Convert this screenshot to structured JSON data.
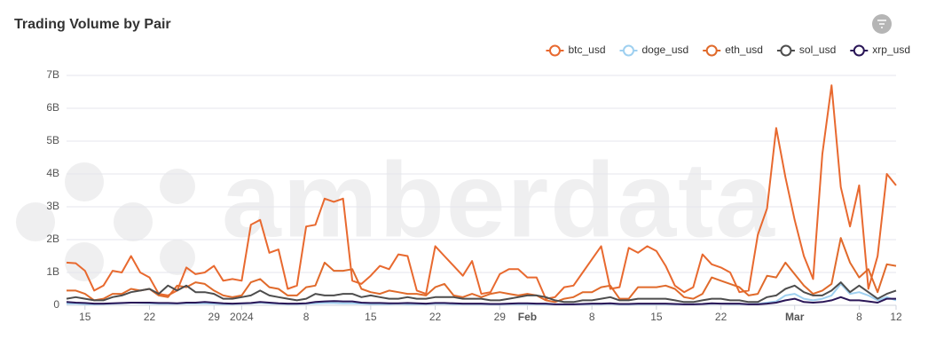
{
  "chart_data": {
    "type": "line",
    "title": "Trading Volume by Pair",
    "watermark": "amberdata",
    "categories": [
      null,
      null,
      "15",
      null,
      null,
      null,
      null,
      null,
      null,
      "22",
      null,
      null,
      null,
      null,
      null,
      null,
      "29",
      null,
      null,
      "2024",
      null,
      null,
      null,
      null,
      null,
      null,
      "8",
      null,
      null,
      null,
      null,
      null,
      null,
      "15",
      null,
      null,
      null,
      null,
      null,
      null,
      "22",
      null,
      null,
      null,
      null,
      null,
      null,
      "29",
      null,
      null,
      "Feb",
      null,
      null,
      null,
      null,
      null,
      null,
      "8",
      null,
      null,
      null,
      null,
      null,
      null,
      "15",
      null,
      null,
      null,
      null,
      null,
      null,
      "22",
      null,
      null,
      null,
      null,
      null,
      null,
      null,
      "Mar",
      null,
      null,
      null,
      null,
      null,
      null,
      "8",
      null,
      null,
      null,
      "12"
    ],
    "series": [
      {
        "name": "btc_usd",
        "color": "#e8692f",
        "values": [
          1.3,
          1.28,
          1.05,
          0.45,
          0.6,
          1.05,
          1.0,
          1.5,
          1.0,
          0.85,
          0.35,
          0.3,
          0.45,
          1.15,
          0.95,
          1.0,
          1.2,
          0.75,
          0.8,
          0.75,
          2.45,
          2.6,
          1.6,
          1.7,
          0.5,
          0.6,
          2.4,
          2.45,
          3.25,
          3.15,
          3.25,
          0.75,
          0.65,
          0.9,
          1.2,
          1.1,
          1.55,
          1.5,
          0.45,
          0.35,
          1.8,
          1.5,
          1.2,
          0.9,
          1.35,
          0.35,
          0.4,
          0.95,
          1.1,
          1.1,
          0.85,
          0.85,
          0.2,
          0.25,
          0.55,
          0.6,
          1.0,
          1.4,
          1.8,
          0.5,
          0.55,
          1.75,
          1.6,
          1.8,
          1.65,
          1.2,
          0.6,
          0.4,
          0.55,
          1.55,
          1.25,
          1.15,
          1.0,
          0.4,
          0.45,
          2.15,
          2.95,
          5.4,
          3.9,
          2.6,
          1.5,
          0.8,
          4.6,
          6.7,
          3.6,
          2.4,
          3.65,
          0.5,
          1.5,
          4.0,
          3.65
        ]
      },
      {
        "name": "doge_usd",
        "color": "#9fd0f0",
        "values": [
          0.05,
          0.05,
          0.04,
          0.03,
          0.04,
          0.05,
          0.06,
          0.08,
          0.07,
          0.06,
          0.05,
          0.05,
          0.05,
          0.06,
          0.06,
          0.06,
          0.05,
          0.04,
          0.04,
          0.05,
          0.06,
          0.08,
          0.06,
          0.05,
          0.04,
          0.04,
          0.05,
          0.06,
          0.07,
          0.07,
          0.06,
          0.06,
          0.05,
          0.04,
          0.04,
          0.04,
          0.05,
          0.04,
          0.04,
          0.04,
          0.05,
          0.05,
          0.04,
          0.04,
          0.04,
          0.04,
          0.03,
          0.03,
          0.04,
          0.04,
          0.04,
          0.04,
          0.03,
          0.03,
          0.02,
          0.03,
          0.03,
          0.04,
          0.04,
          0.05,
          0.03,
          0.03,
          0.04,
          0.04,
          0.04,
          0.04,
          0.03,
          0.03,
          0.03,
          0.04,
          0.05,
          0.05,
          0.04,
          0.04,
          0.03,
          0.04,
          0.08,
          0.12,
          0.3,
          0.35,
          0.2,
          0.15,
          0.2,
          0.3,
          0.65,
          0.35,
          0.4,
          0.3,
          0.15,
          0.25,
          0.15
        ]
      },
      {
        "name": "eth_usd",
        "color": "#e06a2b",
        "values": [
          0.45,
          0.45,
          0.35,
          0.15,
          0.2,
          0.35,
          0.35,
          0.5,
          0.45,
          0.5,
          0.3,
          0.25,
          0.6,
          0.55,
          0.7,
          0.65,
          0.45,
          0.3,
          0.25,
          0.3,
          0.7,
          0.8,
          0.55,
          0.5,
          0.3,
          0.3,
          0.55,
          0.6,
          1.3,
          1.05,
          1.05,
          1.1,
          0.5,
          0.4,
          0.35,
          0.45,
          0.4,
          0.35,
          0.35,
          0.3,
          0.55,
          0.65,
          0.3,
          0.25,
          0.35,
          0.25,
          0.35,
          0.4,
          0.35,
          0.3,
          0.35,
          0.3,
          0.15,
          0.1,
          0.2,
          0.25,
          0.4,
          0.4,
          0.55,
          0.6,
          0.2,
          0.2,
          0.55,
          0.55,
          0.55,
          0.6,
          0.5,
          0.25,
          0.2,
          0.35,
          0.85,
          0.75,
          0.65,
          0.55,
          0.3,
          0.35,
          0.9,
          0.85,
          1.3,
          0.95,
          0.6,
          0.35,
          0.45,
          0.65,
          2.05,
          1.3,
          0.85,
          1.1,
          0.4,
          1.25,
          1.2
        ]
      },
      {
        "name": "sol_usd",
        "color": "#4d4d4d",
        "values": [
          0.2,
          0.25,
          0.2,
          0.15,
          0.15,
          0.25,
          0.3,
          0.4,
          0.45,
          0.5,
          0.35,
          0.6,
          0.45,
          0.6,
          0.4,
          0.4,
          0.35,
          0.2,
          0.2,
          0.25,
          0.3,
          0.45,
          0.3,
          0.25,
          0.2,
          0.15,
          0.2,
          0.35,
          0.3,
          0.3,
          0.35,
          0.35,
          0.25,
          0.3,
          0.25,
          0.2,
          0.2,
          0.25,
          0.2,
          0.2,
          0.25,
          0.25,
          0.25,
          0.2,
          0.2,
          0.2,
          0.15,
          0.15,
          0.2,
          0.25,
          0.3,
          0.3,
          0.25,
          0.15,
          0.1,
          0.1,
          0.15,
          0.15,
          0.2,
          0.25,
          0.15,
          0.15,
          0.2,
          0.2,
          0.2,
          0.2,
          0.15,
          0.1,
          0.1,
          0.15,
          0.2,
          0.2,
          0.15,
          0.15,
          0.1,
          0.1,
          0.25,
          0.3,
          0.5,
          0.6,
          0.4,
          0.3,
          0.3,
          0.45,
          0.7,
          0.4,
          0.6,
          0.4,
          0.2,
          0.35,
          0.45
        ]
      },
      {
        "name": "xrp_usd",
        "color": "#2a1657",
        "values": [
          0.1,
          0.08,
          0.07,
          0.05,
          0.05,
          0.06,
          0.07,
          0.08,
          0.08,
          0.08,
          0.07,
          0.07,
          0.06,
          0.08,
          0.08,
          0.1,
          0.08,
          0.06,
          0.05,
          0.06,
          0.07,
          0.1,
          0.08,
          0.06,
          0.05,
          0.05,
          0.06,
          0.1,
          0.12,
          0.13,
          0.12,
          0.12,
          0.08,
          0.07,
          0.07,
          0.06,
          0.06,
          0.07,
          0.06,
          0.05,
          0.07,
          0.07,
          0.06,
          0.05,
          0.05,
          0.05,
          0.04,
          0.04,
          0.05,
          0.06,
          0.06,
          0.05,
          0.05,
          0.03,
          0.03,
          0.03,
          0.04,
          0.05,
          0.05,
          0.06,
          0.04,
          0.04,
          0.05,
          0.05,
          0.05,
          0.05,
          0.04,
          0.03,
          0.03,
          0.04,
          0.06,
          0.05,
          0.05,
          0.05,
          0.03,
          0.03,
          0.05,
          0.08,
          0.15,
          0.2,
          0.1,
          0.08,
          0.1,
          0.15,
          0.25,
          0.15,
          0.15,
          0.12,
          0.08,
          0.2,
          0.2
        ]
      }
    ],
    "ylim": [
      0,
      7
    ],
    "yticks": [
      0,
      {
        "value": 1,
        "label": "1B"
      },
      {
        "value": 2,
        "label": "2B"
      },
      {
        "value": 3,
        "label": "3B"
      },
      {
        "value": 4,
        "label": "4B"
      },
      {
        "value": 5,
        "label": "5B"
      },
      {
        "value": 6,
        "label": "6B"
      },
      {
        "value": 7,
        "label": "7B"
      }
    ],
    "grid": true,
    "legend": "top-right"
  }
}
